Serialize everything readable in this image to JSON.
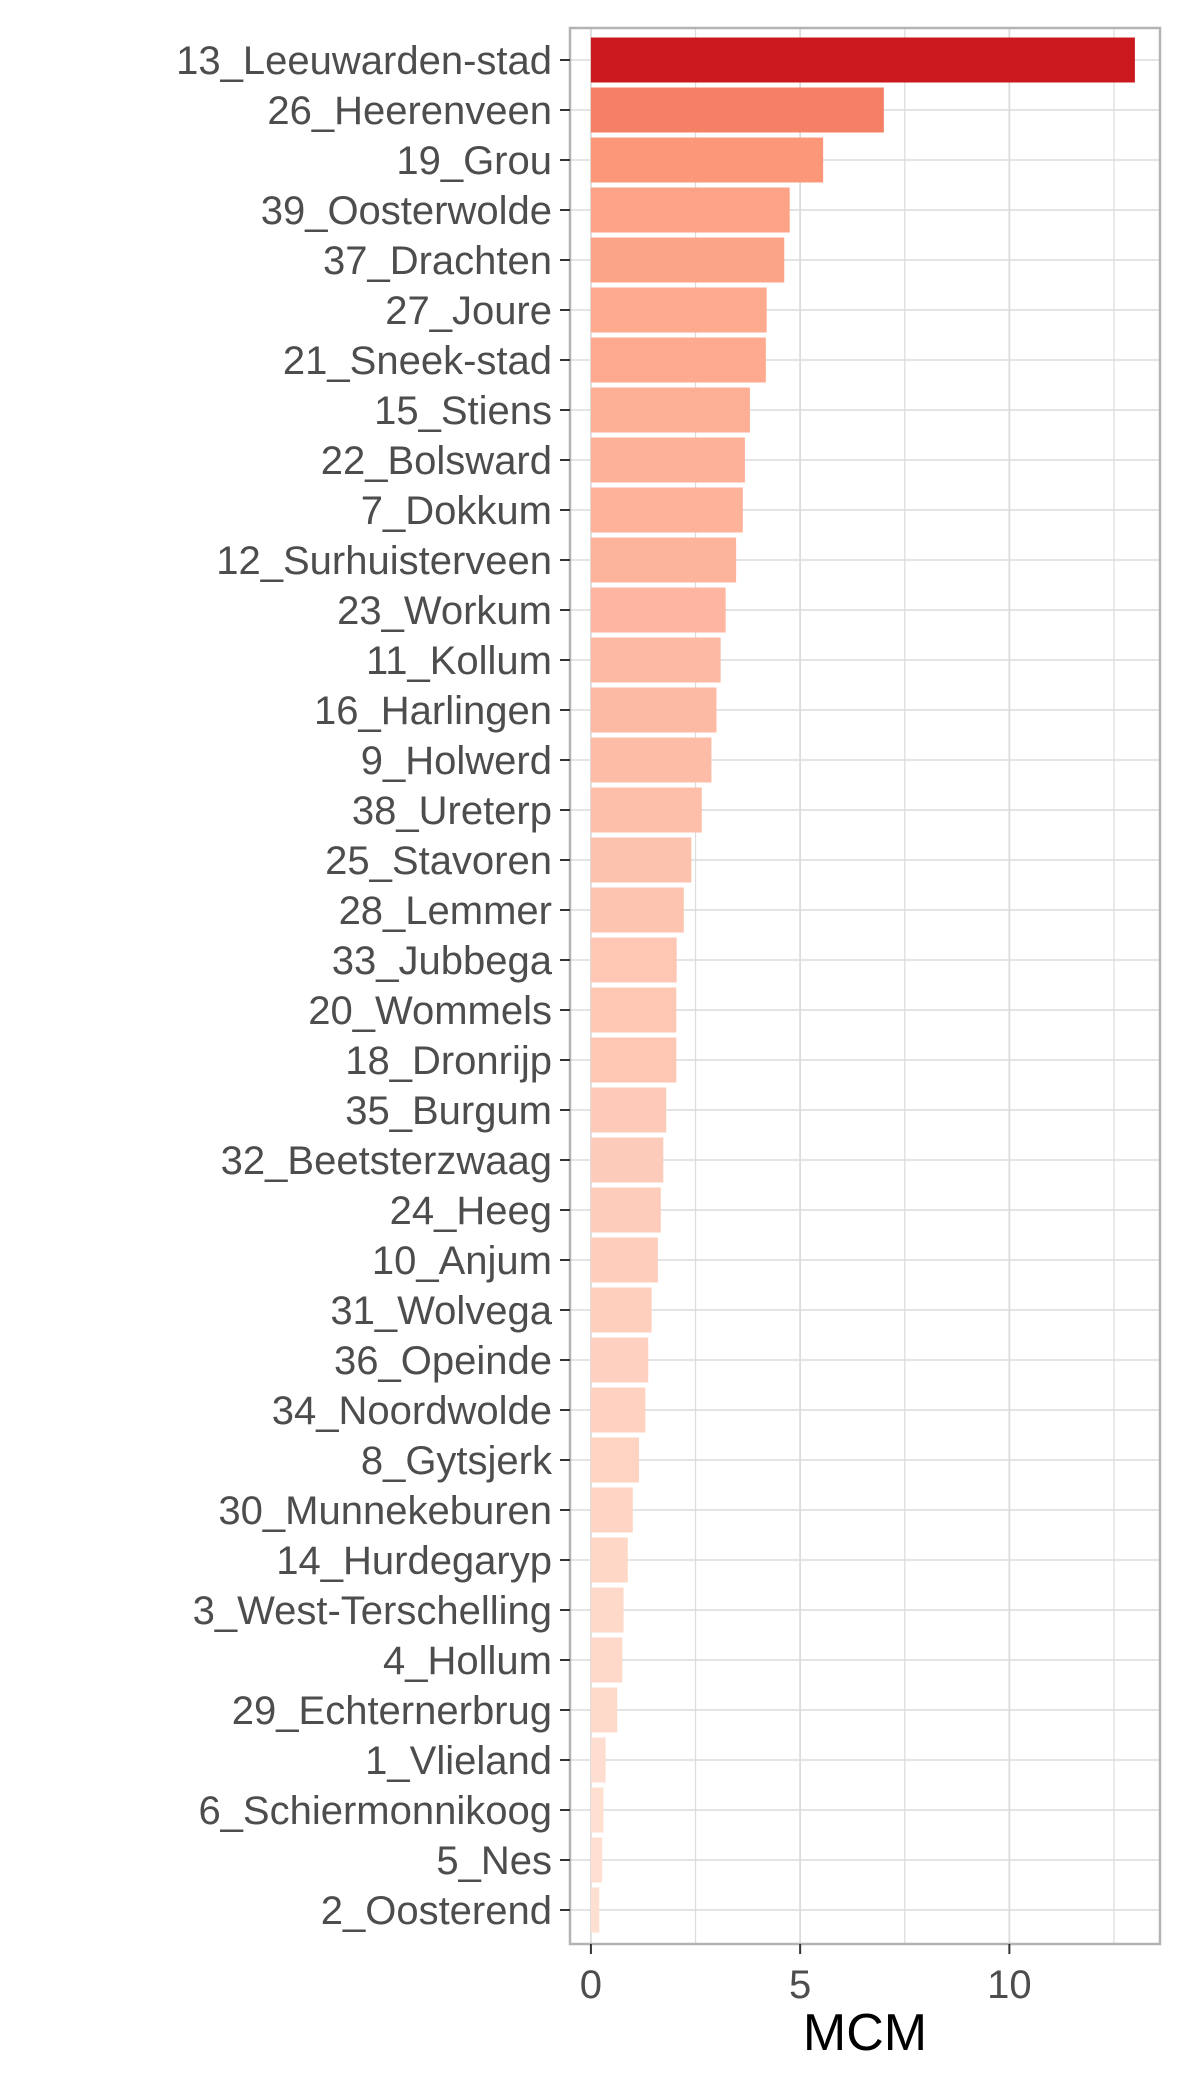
{
  "chart_data": {
    "type": "bar",
    "orientation": "horizontal",
    "title": "",
    "xlabel": "MCM",
    "ylabel": "",
    "xlim": [
      -0.5,
      13.6
    ],
    "xticks": [
      0,
      5,
      10
    ],
    "grid": true,
    "legend": "none",
    "colors": {
      "low": "#fee0d2",
      "mid": "#fc9272",
      "high": "#cb181d",
      "panel_border": "#b3b3b3",
      "grid": "#dcdcdc",
      "text": "#4d4d4d"
    },
    "categories": [
      "13_Leeuwarden-stad",
      "26_Heerenveen",
      "19_Grou",
      "39_Oosterwolde",
      "37_Drachten",
      "27_Joure",
      "21_Sneek-stad",
      "15_Stiens",
      "22_Bolsward",
      "7_Dokkum",
      "12_Surhuisterveen",
      "23_Workum",
      "11_Kollum",
      "16_Harlingen",
      "9_Holwerd",
      "38_Ureterp",
      "25_Stavoren",
      "28_Lemmer",
      "33_Jubbega",
      "20_Wommels",
      "18_Dronrijp",
      "35_Burgum",
      "32_Beetsterzwaag",
      "24_Heeg",
      "10_Anjum",
      "31_Wolvega",
      "36_Opeinde",
      "34_Noordwolde",
      "8_Gytsjerk",
      "30_Munnekeburen",
      "14_Hurdegaryp",
      "3_West-Terschelling",
      "4_Hollum",
      "29_Echternerbrug",
      "1_Vlieland",
      "6_Schiermonnikoog",
      "5_Nes",
      "2_Oosterend"
    ],
    "values": [
      13.0,
      7.0,
      5.55,
      4.75,
      4.62,
      4.2,
      4.18,
      3.8,
      3.68,
      3.63,
      3.47,
      3.22,
      3.1,
      3.0,
      2.88,
      2.65,
      2.4,
      2.22,
      2.05,
      2.04,
      2.04,
      1.8,
      1.73,
      1.67,
      1.6,
      1.45,
      1.37,
      1.3,
      1.15,
      1.0,
      0.88,
      0.78,
      0.75,
      0.63,
      0.35,
      0.3,
      0.27,
      0.2
    ]
  }
}
